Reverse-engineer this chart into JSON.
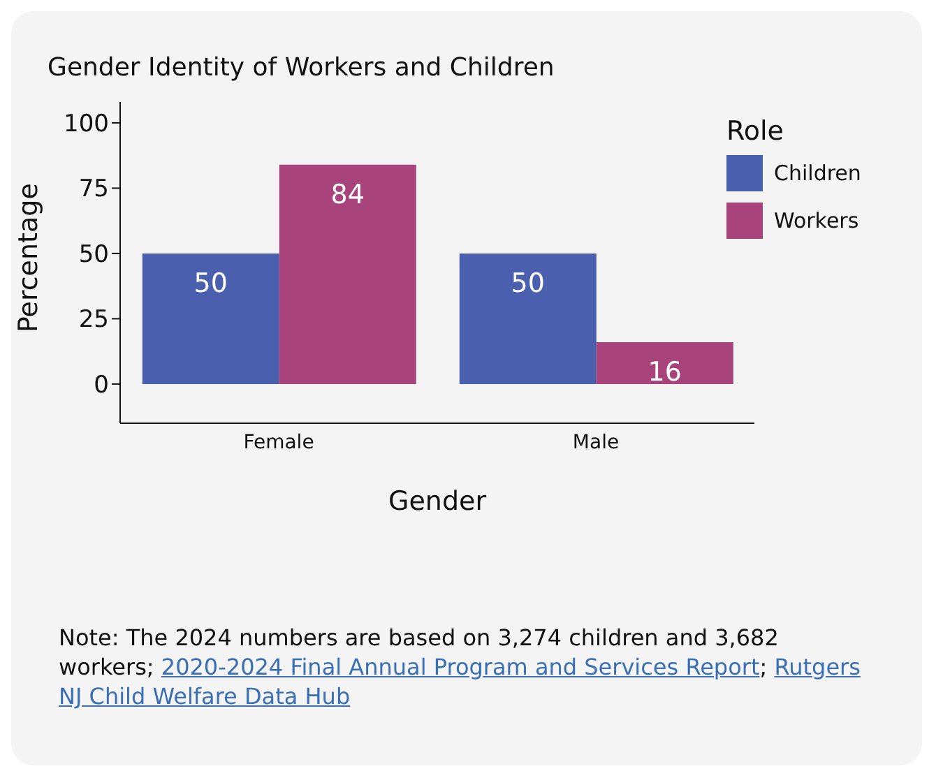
{
  "chart_data": {
    "type": "bar",
    "title": "Gender Identity of Workers and Children",
    "xlabel": "Gender",
    "ylabel": "Percentage",
    "legend_title": "Role",
    "categories": [
      "Female",
      "Male"
    ],
    "series": [
      {
        "name": "Children",
        "color": "#4a5fae",
        "values": [
          50,
          50
        ]
      },
      {
        "name": "Workers",
        "color": "#a8437c",
        "values": [
          84,
          16
        ]
      }
    ],
    "ylim": [
      -15,
      108
    ],
    "yticks": [
      0,
      25,
      50,
      75,
      100
    ],
    "grid": false,
    "legend": "top right",
    "data_labels": true,
    "annotations": [
      "Note:  The 2024 numbers are based on 3,274 children and 3,682 workers;",
      "2020-2024 Final Annual Program and Services Report",
      "; ",
      "Rutgers NJ Child Welfare Data Hub"
    ]
  }
}
